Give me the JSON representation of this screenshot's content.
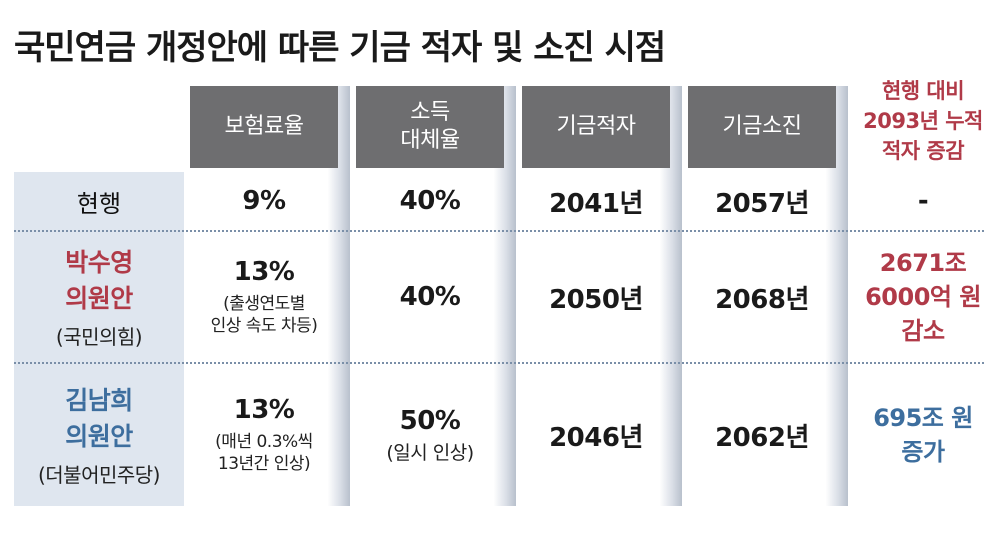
{
  "title": "국민연금 개정안에 따른 기금 적자 및 소진 시점",
  "headers": {
    "premium_rate": "보험료율",
    "replacement_rate_l1": "소득",
    "replacement_rate_l2": "대체율",
    "fund_deficit": "기금적자",
    "fund_depletion": "기금소진",
    "cumulative_l1": "현행 대비",
    "cumulative_l2": "2093년 누적",
    "cumulative_l3": "적자 증감"
  },
  "rows": [
    {
      "label": "현행",
      "premium_rate": "9%",
      "replacement_rate": "40%",
      "fund_deficit": "2041년",
      "fund_depletion": "2057년",
      "cumulative": "-"
    },
    {
      "label_l1": "박수영",
      "label_l2": "의원안",
      "party": "(국민의힘)",
      "premium_rate": "13%",
      "premium_note_l1": "(출생연도별",
      "premium_note_l2": "인상 속도 차등)",
      "replacement_rate": "40%",
      "fund_deficit": "2050년",
      "fund_depletion": "2068년",
      "cumulative_l1": "2671조",
      "cumulative_l2": "6000억 원",
      "cumulative_l3": "감소"
    },
    {
      "label_l1": "김남희",
      "label_l2": "의원안",
      "party": "(더불어민주당)",
      "premium_rate": "13%",
      "premium_note_l1": "(매년 0.3%씩",
      "premium_note_l2": "13년간 인상)",
      "replacement_rate": "50%",
      "replacement_note": "(일시 인상)",
      "fund_deficit": "2046년",
      "fund_depletion": "2062년",
      "cumulative_l1": "695조 원",
      "cumulative_l2": "증가"
    }
  ],
  "colors": {
    "header_bg": "#6e6e70",
    "row_label_bg": "#dfe6ef",
    "accent_red": "#b03a48",
    "accent_blue": "#3d6e9e"
  }
}
